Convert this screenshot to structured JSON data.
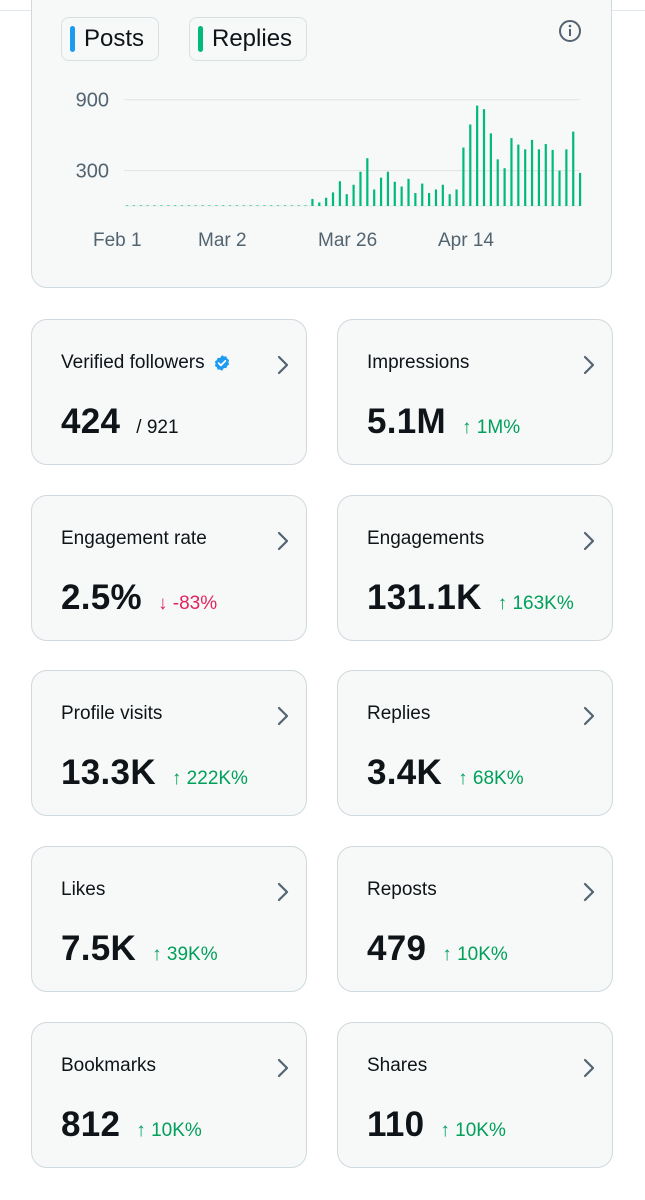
{
  "legend": [
    {
      "label": "Posts",
      "color": "#1d9bf0"
    },
    {
      "label": "Replies",
      "color": "#00ba7c"
    }
  ],
  "info_icon": "info-icon",
  "chart_data": {
    "type": "bar",
    "y_ticks": [
      "900",
      "300"
    ],
    "y_tick_values": [
      900,
      300
    ],
    "x_ticks": [
      "Feb 1",
      "Mar 2",
      "Mar 26",
      "Apr 14"
    ],
    "series": [
      {
        "name": "Replies",
        "color": "#00ba7c",
        "values": [
          4,
          0,
          5,
          0,
          3,
          4,
          0,
          2,
          5,
          3,
          0,
          2,
          0,
          0,
          0,
          3,
          0,
          0,
          0,
          2,
          3,
          0,
          5,
          0,
          3,
          4,
          2,
          60,
          30,
          70,
          115,
          210,
          100,
          180,
          290,
          405,
          140,
          240,
          290,
          205,
          165,
          230,
          110,
          190,
          110,
          140,
          180,
          100,
          140,
          495,
          690,
          850,
          820,
          615,
          395,
          320,
          575,
          520,
          480,
          560,
          480,
          525,
          475,
          300,
          480,
          630,
          280
        ]
      }
    ],
    "ylim": [
      0,
      1000
    ]
  },
  "stats": [
    {
      "label": "Verified followers",
      "value": "424",
      "sub": "/ 921",
      "verified_icon": "verified-badge-icon"
    },
    {
      "label": "Impressions",
      "value": "5.1M",
      "change": "↑ 1M%",
      "direction": "up"
    },
    {
      "label": "Engagement rate",
      "value": "2.5%",
      "change": "↓ -83%",
      "direction": "down"
    },
    {
      "label": "Engagements",
      "value": "131.1K",
      "change": "↑ 163K%",
      "direction": "up"
    },
    {
      "label": "Profile visits",
      "value": "13.3K",
      "change": "↑ 222K%",
      "direction": "up"
    },
    {
      "label": "Replies",
      "value": "3.4K",
      "change": "↑ 68K%",
      "direction": "up"
    },
    {
      "label": "Likes",
      "value": "7.5K",
      "change": "↑ 39K%",
      "direction": "up"
    },
    {
      "label": "Reposts",
      "value": "479",
      "change": "↑ 10K%",
      "direction": "up"
    },
    {
      "label": "Bookmarks",
      "value": "812",
      "change": "↑ 10K%",
      "direction": "up"
    },
    {
      "label": "Shares",
      "value": "110",
      "change": "↑ 10K%",
      "direction": "up"
    }
  ],
  "colors": {
    "up": "#00a05a",
    "down": "#e0245e",
    "card_bg": "#f7f8f8",
    "card_border": "#cfd9de",
    "verified": "#1d9bf0",
    "chevron": "#536471"
  }
}
